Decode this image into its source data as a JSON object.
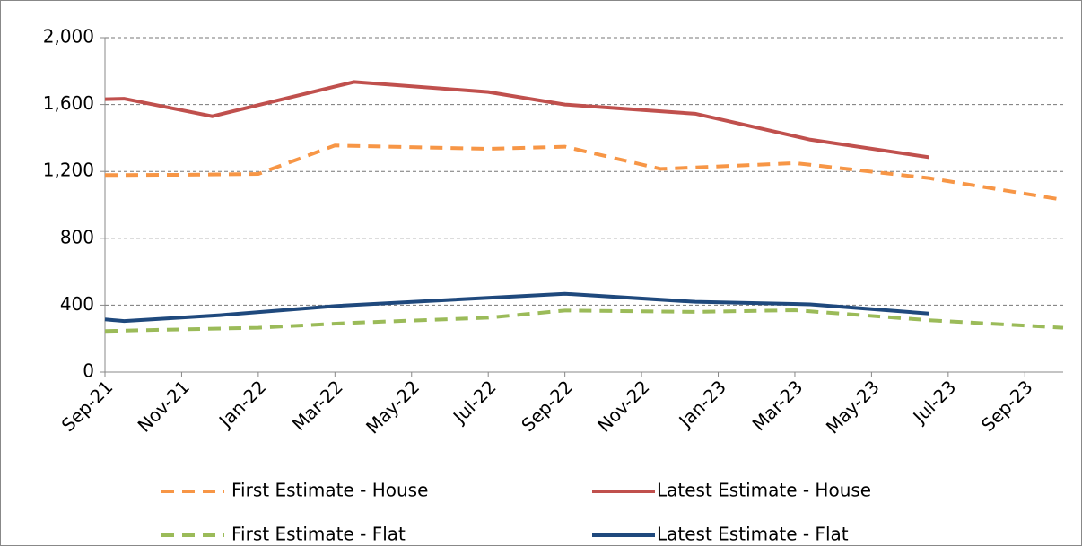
{
  "chart_data": {
    "type": "line",
    "xlim": [
      0,
      25
    ],
    "xticks": [
      {
        "value": 0,
        "label": "Sep-21"
      },
      {
        "value": 2,
        "label": "Nov-21"
      },
      {
        "value": 4,
        "label": "Jan-22"
      },
      {
        "value": 6,
        "label": "Mar-22"
      },
      {
        "value": 8,
        "label": "May-22"
      },
      {
        "value": 10,
        "label": "Jul-22"
      },
      {
        "value": 12,
        "label": "Sep-22"
      },
      {
        "value": 14,
        "label": "Nov-22"
      },
      {
        "value": 16,
        "label": "Jan-23"
      },
      {
        "value": 18,
        "label": "Mar-23"
      },
      {
        "value": 20,
        "label": "May-23"
      },
      {
        "value": 22,
        "label": "Jul-23"
      },
      {
        "value": 24,
        "label": "Sep-23"
      }
    ],
    "ylim": [
      0,
      2000
    ],
    "yticks": [
      0,
      {
        "value": 400,
        "label": "400"
      },
      {
        "value": 800,
        "label": "800"
      },
      {
        "value": 1200,
        "label": "1,200"
      },
      {
        "value": 1600,
        "label": "1,600"
      },
      {
        "value": 2000,
        "label": "2,000"
      }
    ],
    "grid": true,
    "legend": "bottom",
    "series": [
      {
        "name": "First Estimate - House",
        "color": "#f79646",
        "style": "dashed",
        "x": [
          0,
          2,
          4,
          6,
          10,
          12,
          14.5,
          18,
          21.5,
          25
        ],
        "values": [
          1178,
          1180,
          1185,
          1355,
          1335,
          1348,
          1215,
          1250,
          1160,
          1030
        ]
      },
      {
        "name": "Latest Estimate - House",
        "color": "#c0504d",
        "style": "solid",
        "x": [
          0,
          0.5,
          2.8,
          6.5,
          10,
          12,
          15.4,
          18.4,
          21.5
        ],
        "values": [
          1632,
          1635,
          1530,
          1735,
          1675,
          1600,
          1545,
          1390,
          1285
        ]
      },
      {
        "name": "First Estimate - Flat",
        "color": "#9bbb59",
        "style": "dashed",
        "x": [
          0,
          0.5,
          4,
          6.5,
          10,
          12,
          15.4,
          18,
          21.5,
          25
        ],
        "values": [
          245,
          248,
          265,
          295,
          325,
          368,
          360,
          370,
          310,
          265
        ]
      },
      {
        "name": "Latest Estimate - Flat",
        "color": "#1f497d",
        "style": "solid",
        "x": [
          0,
          0.5,
          3,
          6,
          12,
          15.4,
          18.4,
          21.5
        ],
        "values": [
          315,
          305,
          340,
          395,
          468,
          420,
          405,
          350
        ]
      }
    ]
  }
}
